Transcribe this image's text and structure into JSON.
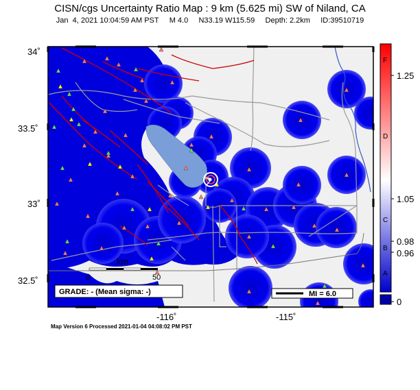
{
  "header": {
    "title": "CISN/cgs Uncertainty Ratio Map : 9 km (5.625 mi) SW of Niland, CA",
    "date": "Jan  4, 2021 10:04:59 AM PST",
    "magnitude": "M 4.0",
    "location": "N33.19 W115.59",
    "depth": "Depth: 2.2km",
    "event_id": "ID:39510719"
  },
  "axes": {
    "lat_ticks": [
      "34˚",
      "33.5˚",
      "33˚",
      "32.5˚"
    ],
    "lon_ticks": [
      "-116˚",
      "-115˚"
    ]
  },
  "scale_bar": {
    "unit": "km",
    "labels": [
      "0",
      "50"
    ]
  },
  "grade_box": "GRADE: - (Mean sigma: -)",
  "mi_box": "MI = 6.0",
  "colorbar": {
    "values": [
      "1.25",
      "1.05",
      "0.98",
      "0.96",
      "0"
    ],
    "grades": [
      "F",
      "D",
      "C",
      "B",
      "A"
    ],
    "colors": {
      "top": "#ff0000",
      "mid": "#ffffff",
      "bottom": "#0000cc",
      "base": "#0000aa"
    }
  },
  "footer": "Map Version 6 Processed 2021-01-04 04:08:02 PM PST",
  "colors": {
    "stations": "#0000dd",
    "lake": "#7a9fd8",
    "faults": "#cc0000",
    "roads": "#9a9a9a",
    "background": "#f0f0f0",
    "station_red": "#ff7777",
    "station_green": "#66dd66",
    "station_yellow": "#ffff00"
  }
}
